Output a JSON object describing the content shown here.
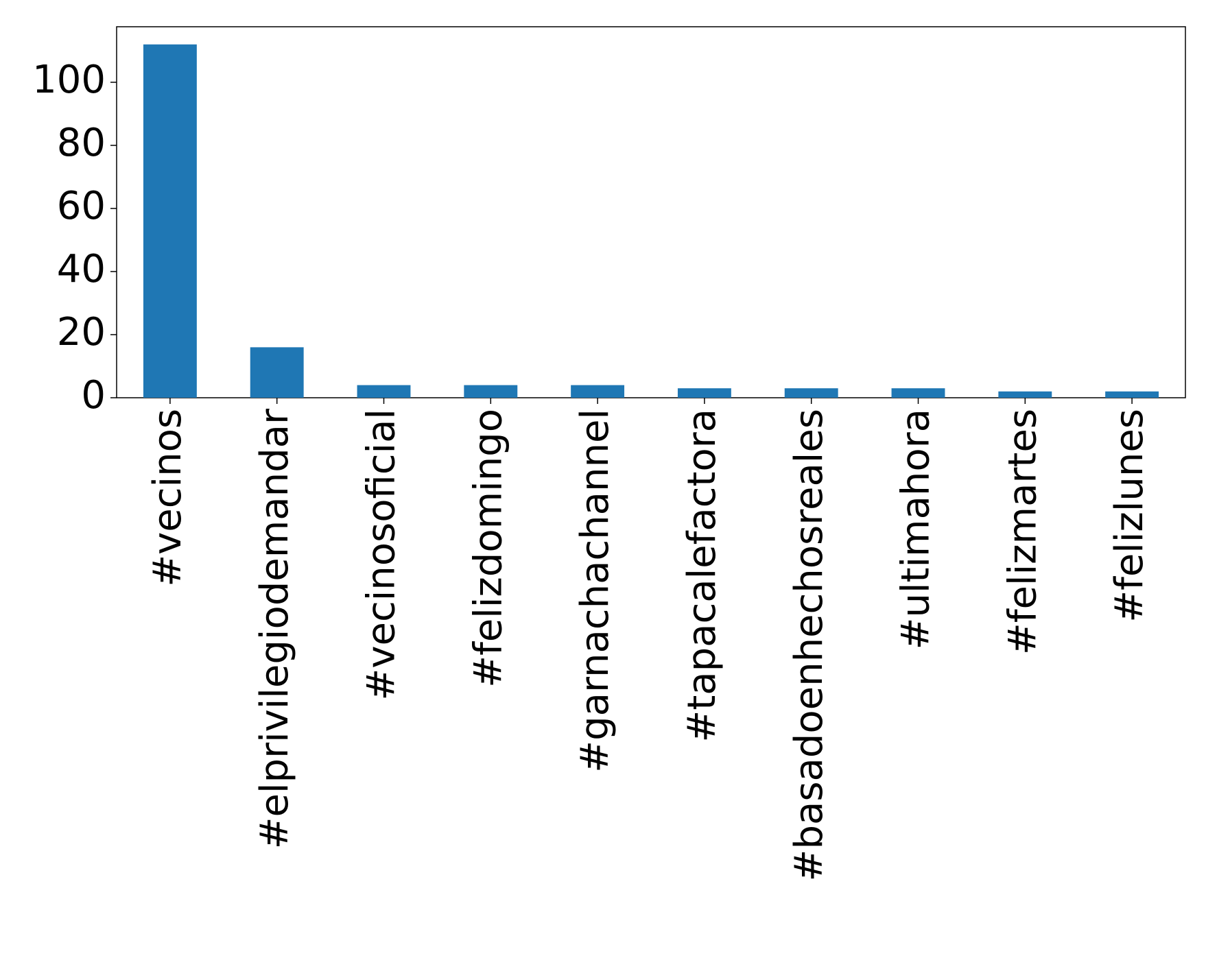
{
  "chart_data": {
    "type": "bar",
    "categories": [
      "#vecinos",
      "#elprivilegiodemandar",
      "#vecinosoficial",
      "#felizdomingo",
      "#garnachachannel",
      "#tapacalefactora",
      "#basadoenhechosreales",
      "#ultimahora",
      "#felizmartes",
      "#felizlunes"
    ],
    "values": [
      112,
      16,
      4,
      4,
      4,
      3,
      3,
      3,
      2,
      2
    ],
    "color": "#1f77b4",
    "ylim": [
      0,
      117.6
    ],
    "yticks": [
      0,
      20,
      40,
      60,
      80,
      100
    ],
    "grid": false
  }
}
